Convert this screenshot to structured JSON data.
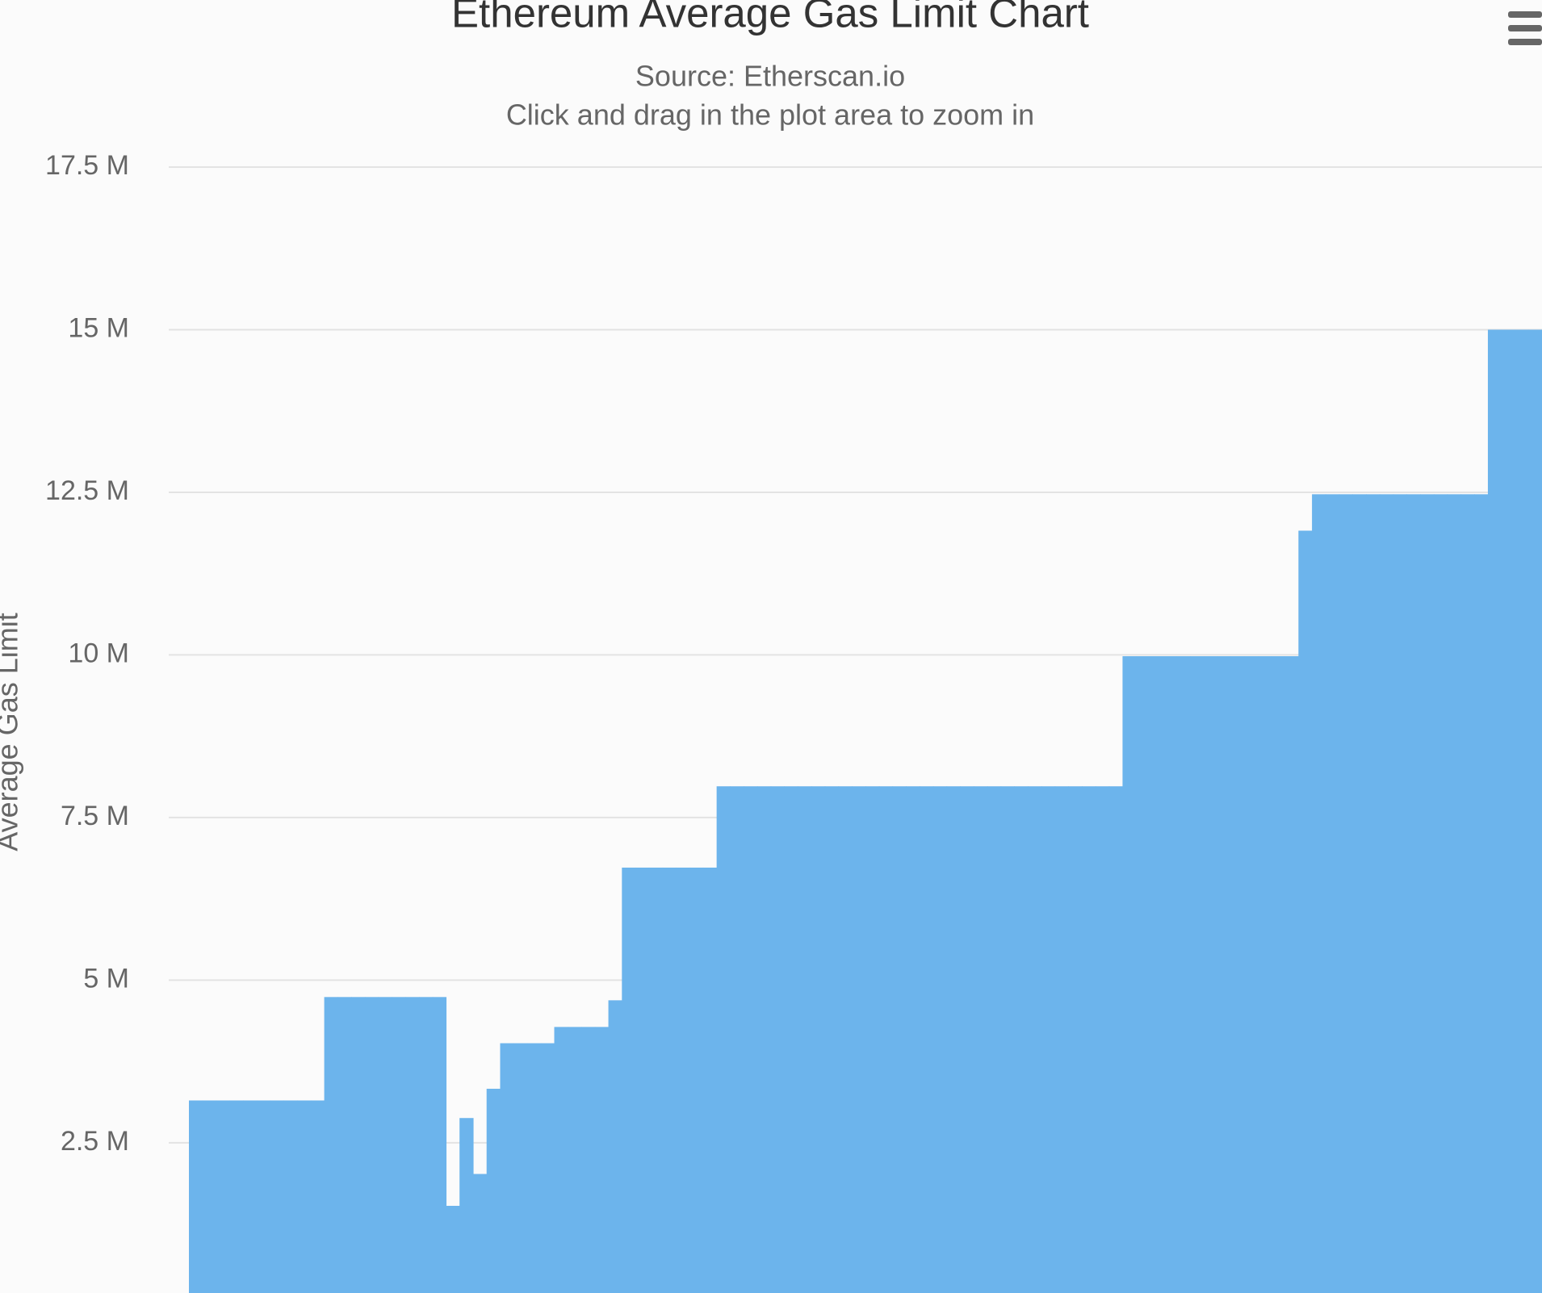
{
  "chart_data": {
    "type": "area",
    "title": "Ethereum Average Gas Limit Chart",
    "subtitle": "Source: Etherscan.io",
    "note": "Click and drag in the plot area to zoom in",
    "ylabel": "Average Gas Limit",
    "color": "#6cb4ec",
    "grid": true,
    "ylim": [
      190000,
      17500000
    ],
    "yticks": [
      {
        "value": 2500000,
        "label": "2.5 M"
      },
      {
        "value": 5000000,
        "label": "5 M"
      },
      {
        "value": 7500000,
        "label": "7.5 M"
      },
      {
        "value": 10000000,
        "label": "10 M"
      },
      {
        "value": 12500000,
        "label": "12.5 M"
      },
      {
        "value": 15000000,
        "label": "15 M"
      },
      {
        "value": 17500000,
        "label": "17.5 M"
      }
    ],
    "values": [
      3150000,
      3150000,
      3150000,
      3150000,
      3150000,
      3150000,
      3150000,
      3150000,
      3150000,
      3150000,
      4740000,
      4740000,
      4740000,
      4740000,
      4740000,
      4740000,
      4740000,
      4740000,
      4740000,
      1530000,
      2880000,
      2020000,
      3330000,
      4030000,
      4030000,
      4030000,
      4030000,
      4280000,
      4280000,
      4280000,
      4280000,
      4690000,
      6730000,
      6730000,
      6730000,
      6730000,
      6730000,
      6730000,
      6730000,
      7980000,
      7980000,
      7980000,
      7980000,
      7980000,
      7980000,
      7980000,
      7980000,
      7980000,
      7980000,
      7980000,
      7980000,
      7980000,
      7980000,
      7980000,
      7980000,
      7980000,
      7980000,
      7980000,
      7980000,
      7980000,
      7980000,
      7980000,
      7980000,
      7980000,
      7980000,
      7980000,
      7980000,
      7980000,
      7980000,
      9980000,
      9980000,
      9980000,
      9980000,
      9980000,
      9980000,
      9980000,
      9980000,
      9980000,
      9980000,
      9980000,
      9980000,
      9980000,
      11910000,
      12470000,
      12470000,
      12470000,
      12470000,
      12470000,
      12470000,
      12470000,
      12470000,
      12470000,
      12470000,
      12470000,
      12470000,
      12470000,
      15000000,
      15000000,
      15000000,
      15000000
    ]
  }
}
